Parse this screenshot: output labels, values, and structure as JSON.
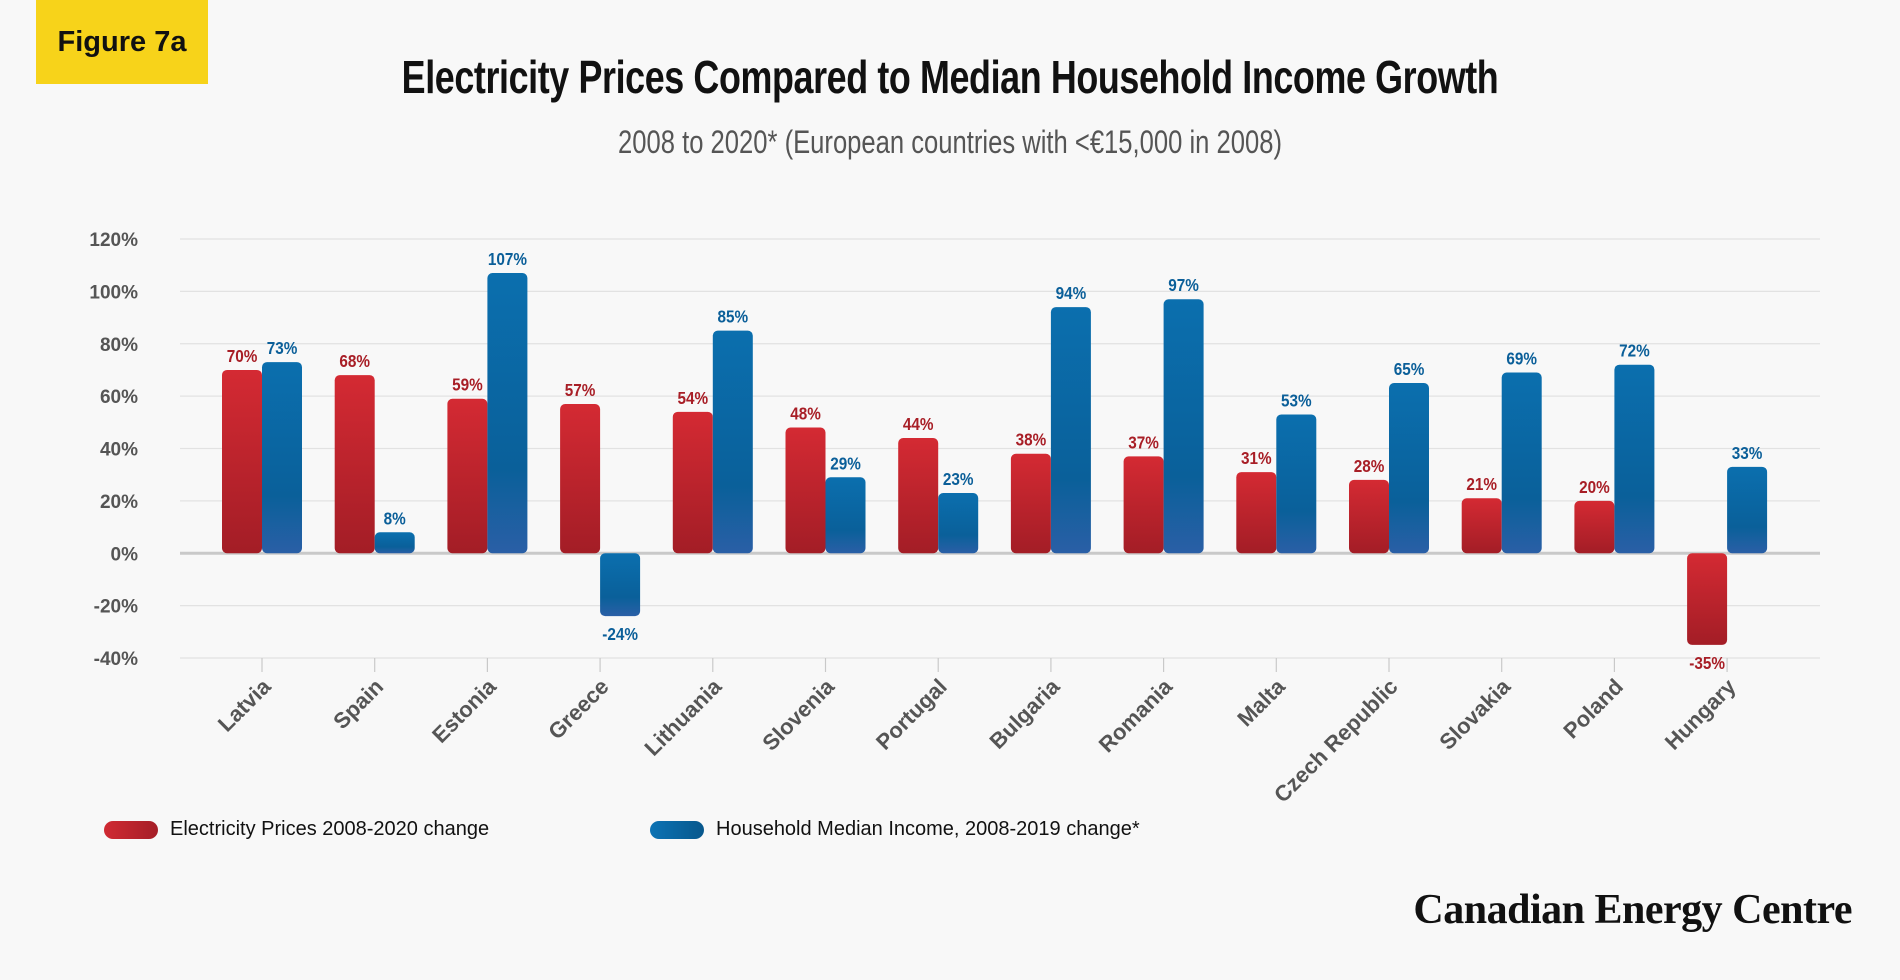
{
  "badge": "Figure 7a",
  "brand": "Canadian Energy Centre",
  "chart_data": {
    "type": "bar",
    "title": "Electricity Prices Compared to Median Household Income Growth",
    "subtitle": "2008 to 2020* (European countries with <€15,000 in 2008)",
    "categories": [
      "Latvia",
      "Spain",
      "Estonia",
      "Greece",
      "Lithuania",
      "Slovenia",
      "Portugal",
      "Bulgaria",
      "Romania",
      "Malta",
      "Czech Republic",
      "Slovakia",
      "Poland",
      "Hungary"
    ],
    "series": [
      {
        "name": "Electricity Prices 2008-2020 change",
        "values": [
          70,
          68,
          59,
          57,
          54,
          48,
          44,
          38,
          37,
          31,
          28,
          21,
          20,
          -35
        ],
        "labels": [
          "70%",
          "68%",
          "59%",
          "57%",
          "54%",
          "48%",
          "44%",
          "38%",
          "37%",
          "31%",
          "28%",
          "21%",
          "20%",
          "-35%"
        ],
        "color": "#c9252f",
        "label_color": "#a81e26"
      },
      {
        "name": "Household Median Income, 2008-2019 change*",
        "values": [
          73,
          8,
          107,
          -24,
          85,
          29,
          23,
          94,
          97,
          53,
          65,
          69,
          72,
          33
        ],
        "labels": [
          "73%",
          "8%",
          "107%",
          "-24%",
          "85%",
          "29%",
          "23%",
          "94%",
          "97%",
          "53%",
          "65%",
          "69%",
          "72%",
          "33%"
        ],
        "color": "#0a6aa6",
        "label_color": "#0b5f99"
      }
    ],
    "yticks": [
      -40,
      -20,
      0,
      20,
      40,
      60,
      80,
      100,
      120
    ],
    "ytick_labels": [
      "-40%",
      "-20%",
      "0%",
      "20%",
      "40%",
      "60%",
      "80%",
      "100%",
      "120%"
    ],
    "ylim": [
      -40,
      120
    ],
    "grid": true,
    "legend_position": "bottom-left"
  }
}
